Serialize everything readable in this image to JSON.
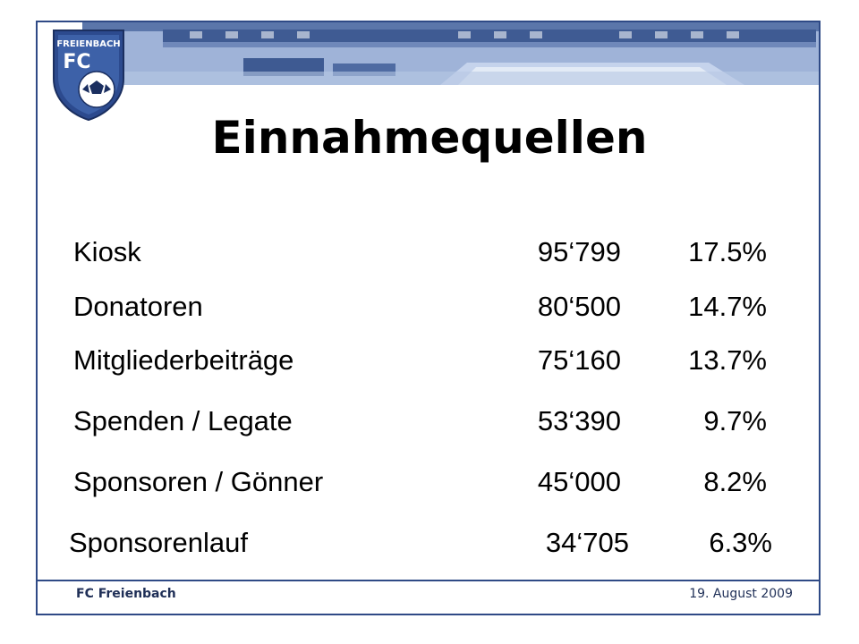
{
  "header": {
    "logo_text_top": "FREIENBACH",
    "logo_text_fc": "FC"
  },
  "slide": {
    "title": "Einnahmequellen",
    "rows": [
      {
        "label": "Kiosk",
        "amount": "95‘799",
        "percent": "17.5%"
      },
      {
        "label": "Donatoren",
        "amount": "80‘500",
        "percent": "14.7%"
      },
      {
        "label": "Mitgliederbeiträge",
        "amount": "75‘160",
        "percent": "13.7%"
      },
      {
        "label": "Spenden / Legate",
        "amount": "53‘390",
        "percent": "9.7%"
      },
      {
        "label": "Sponsoren / Gönner",
        "amount": "45‘000",
        "percent": "8.2%"
      },
      {
        "label": "Sponsorenlauf",
        "amount": "34‘705",
        "percent": "6.3%"
      }
    ]
  },
  "footer": {
    "left": "FC Freienbach",
    "right": "19. August 2009"
  },
  "colors": {
    "frame": "#2f4a86",
    "banner": "#8fa6cf",
    "text": "#000000"
  }
}
